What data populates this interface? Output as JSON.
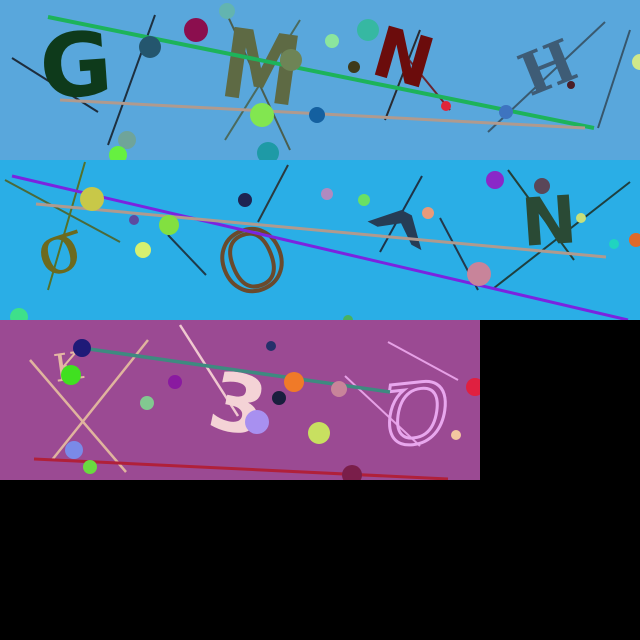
{
  "bands": [
    {
      "background": "#59A7DC",
      "glyphs": [
        {
          "char": "G",
          "color": "#0E3A1B"
        },
        {
          "char": "M",
          "color": "#5E6A44"
        },
        {
          "char": "N",
          "color": "#6B0C0C"
        },
        {
          "char": "H",
          "color": "#3E5C76"
        }
      ]
    },
    {
      "background": "#2AAEE6",
      "glyphs": [
        {
          "char": "σ",
          "color": "#6C6A1E"
        },
        {
          "char": "O",
          "color": "#6A4A2C"
        },
        {
          "char": "^",
          "color": "#263C55"
        },
        {
          "char": "N",
          "color": "#2A4A35"
        }
      ]
    },
    {
      "background": "#9B4A93",
      "glyphs": [
        {
          "char": "K",
          "color": "#E4B7A3"
        },
        {
          "char": "3",
          "color": "#F4D3D6"
        },
        {
          "char": "Ꝺ",
          "color": "#E8A7EE"
        }
      ]
    }
  ]
}
